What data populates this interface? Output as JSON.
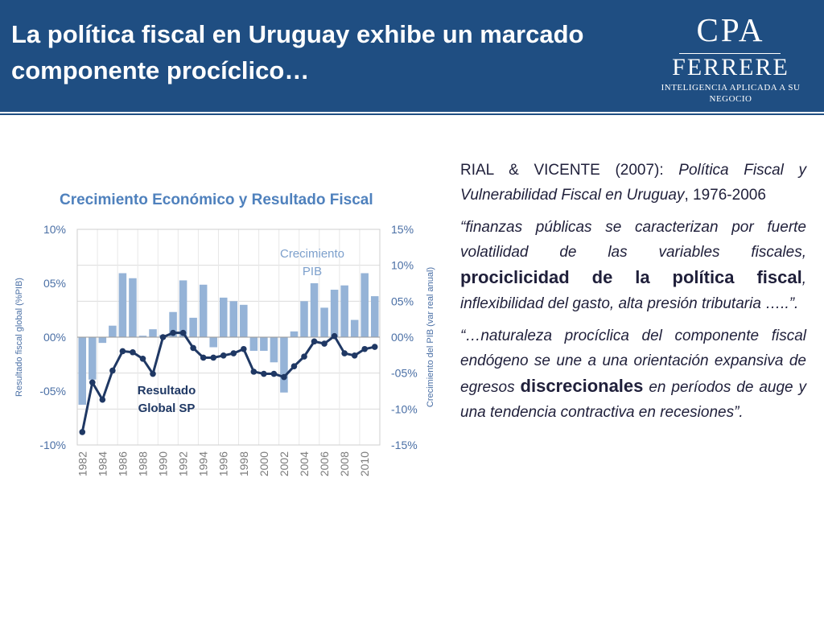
{
  "slide": {
    "title": "La política fiscal en Uruguay exhibe un marcado componente procíclico…"
  },
  "logo": {
    "line1": "CPA",
    "line2": "FERRERE",
    "tagline": "INTELIGENCIA APLICADA A SU NEGOCIO"
  },
  "text": {
    "citation_authors": "RIAL & VICENTE (2007): ",
    "citation_title": "Política Fiscal y Vulnerabilidad Fiscal en Uruguay",
    "citation_years": ", 1976-2006",
    "quote1_start": "“finanzas públicas se caracterizan por fuerte volatilidad de las variables fiscales, ",
    "quote1_emph": "prociclicidad de la política fiscal",
    "quote1_end": ", inflexibilidad del gasto, alta presión tributaria …..”.",
    "quote2_start": "“…naturaleza procíclica del componente fiscal endógeno se une a una orientación expansiva de egresos ",
    "quote2_emph": "discrecionales",
    "quote2_end": " en períodos de auge y una tendencia contractiva en recesiones”."
  },
  "colors": {
    "header": "#1f4e82",
    "bar": "#95b3d7",
    "line": "#1f3864",
    "title_text": "#4f81bd",
    "axis_text": "#4a6fa5",
    "body_text": "#1f1f3a"
  },
  "chart_data": {
    "type": "bar",
    "title": "Crecimiento Económico y Resultado Fiscal",
    "ylabel_left": "Resultado fiscal global (%PIB)",
    "ylabel_right": "Crecimiento del PIB (var real anual)",
    "ylim_left": [
      -0.1,
      0.1
    ],
    "ylim_right": [
      -0.15,
      0.15
    ],
    "yticks_left": [
      "10%",
      "05%",
      "00%",
      "-05%",
      "-10%"
    ],
    "yticks_right": [
      "15%",
      "10%",
      "05%",
      "00%",
      "-05%",
      "-10%",
      "-15%"
    ],
    "x": [
      1982,
      1983,
      1984,
      1985,
      1986,
      1987,
      1988,
      1989,
      1990,
      1991,
      1992,
      1993,
      1994,
      1995,
      1996,
      1997,
      1998,
      1999,
      2000,
      2001,
      2002,
      2003,
      2004,
      2005,
      2006,
      2007,
      2008,
      2009,
      2010,
      2011
    ],
    "xtick_labels": [
      "1982",
      "1984",
      "1986",
      "1988",
      "1990",
      "1992",
      "1994",
      "1996",
      "1998",
      "2000",
      "2002",
      "2004",
      "2006",
      "2008",
      "2010"
    ],
    "grid": true,
    "series": [
      {
        "name": "Crecimiento PIB",
        "type": "bar",
        "axis": "right",
        "values": [
          -0.094,
          -0.059,
          -0.008,
          0.016,
          0.089,
          0.082,
          0.002,
          0.011,
          0.003,
          0.035,
          0.079,
          0.027,
          0.073,
          -0.014,
          0.055,
          0.05,
          0.045,
          -0.019,
          -0.019,
          -0.035,
          -0.077,
          0.008,
          0.05,
          0.075,
          0.041,
          0.066,
          0.072,
          0.024,
          0.089,
          0.057
        ]
      },
      {
        "name": "Resultado Global SP",
        "type": "line",
        "axis": "left",
        "values": [
          -0.088,
          -0.042,
          -0.058,
          -0.031,
          -0.013,
          -0.014,
          -0.02,
          -0.034,
          0.0,
          0.004,
          0.004,
          -0.01,
          -0.019,
          -0.019,
          -0.017,
          -0.015,
          -0.011,
          -0.032,
          -0.034,
          -0.034,
          -0.037,
          -0.027,
          -0.018,
          -0.004,
          -0.006,
          0.001,
          -0.015,
          -0.017,
          -0.011,
          -0.009
        ]
      }
    ]
  }
}
